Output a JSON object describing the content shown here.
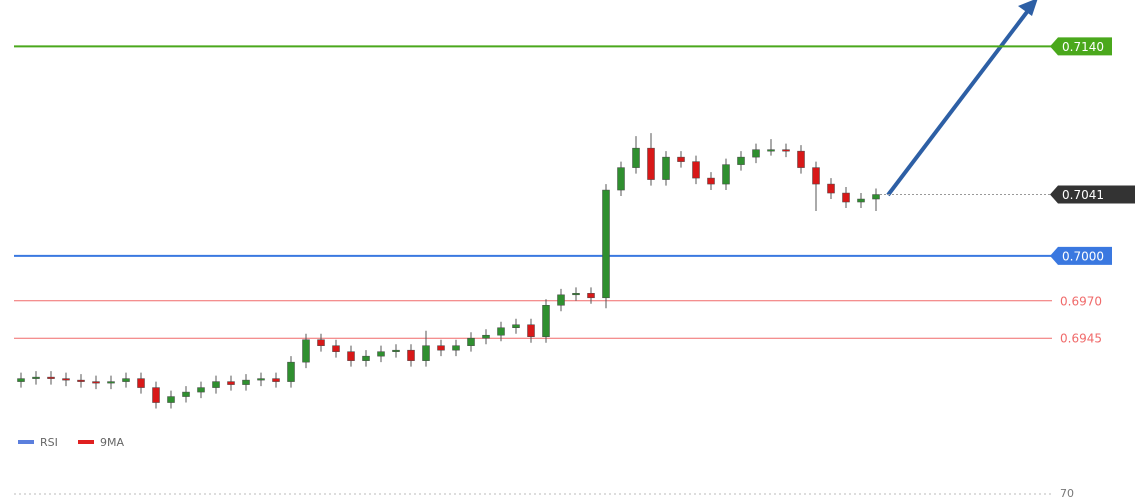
{
  "chart_data": {
    "type": "candlestick",
    "open": [
      0.6916,
      0.6918,
      0.6919,
      0.6918,
      0.6917,
      0.6916,
      0.6915,
      0.6916,
      0.6918,
      0.6912,
      0.6902,
      0.6906,
      0.6909,
      0.6912,
      0.6916,
      0.6914,
      0.6917,
      0.6918,
      0.6916,
      0.6929,
      0.6944,
      0.694,
      0.6936,
      0.693,
      0.6933,
      0.6936,
      0.6937,
      0.693,
      0.694,
      0.6937,
      0.694,
      0.6945,
      0.6947,
      0.6952,
      0.6954,
      0.6946,
      0.6967,
      0.6974,
      0.6975,
      0.6972,
      0.7044,
      0.7059,
      0.7072,
      0.7051,
      0.7066,
      0.7063,
      0.7052,
      0.7048,
      0.7061,
      0.7066,
      0.7071,
      0.7071,
      0.707,
      0.7059,
      0.7048,
      0.7042,
      0.7036,
      0.7038
    ],
    "high": [
      0.6922,
      0.6923,
      0.6923,
      0.6922,
      0.6921,
      0.692,
      0.692,
      0.6922,
      0.6922,
      0.6916,
      0.691,
      0.6913,
      0.6916,
      0.692,
      0.692,
      0.6921,
      0.6922,
      0.6922,
      0.6933,
      0.6948,
      0.6948,
      0.6944,
      0.694,
      0.6937,
      0.694,
      0.6941,
      0.6941,
      0.695,
      0.6944,
      0.6944,
      0.6949,
      0.6951,
      0.6956,
      0.6958,
      0.6958,
      0.6971,
      0.6978,
      0.6979,
      0.6979,
      0.7048,
      0.7063,
      0.708,
      0.7082,
      0.707,
      0.707,
      0.7067,
      0.7056,
      0.7065,
      0.707,
      0.7075,
      0.7078,
      0.7075,
      0.7074,
      0.7063,
      0.7052,
      0.7046,
      0.7042,
      0.7045
    ],
    "low": [
      0.6912,
      0.6914,
      0.6914,
      0.6913,
      0.6912,
      0.6911,
      0.6911,
      0.6912,
      0.6908,
      0.6898,
      0.6898,
      0.6902,
      0.6905,
      0.6908,
      0.691,
      0.691,
      0.6913,
      0.6912,
      0.6912,
      0.6925,
      0.6936,
      0.6932,
      0.6926,
      0.6926,
      0.6929,
      0.6932,
      0.6926,
      0.6926,
      0.6933,
      0.6933,
      0.6936,
      0.6941,
      0.6943,
      0.6948,
      0.6942,
      0.6942,
      0.6963,
      0.697,
      0.6968,
      0.6965,
      0.704,
      0.7055,
      0.7047,
      0.7047,
      0.7059,
      0.7048,
      0.7044,
      0.7044,
      0.7057,
      0.7062,
      0.7067,
      0.7066,
      0.7055,
      0.703,
      0.7038,
      0.7032,
      0.7032,
      0.703
    ],
    "close": [
      0.6918,
      0.6919,
      0.6918,
      0.6917,
      0.6916,
      0.6915,
      0.6916,
      0.6918,
      0.6912,
      0.6902,
      0.6906,
      0.6909,
      0.6912,
      0.6916,
      0.6914,
      0.6917,
      0.6918,
      0.6916,
      0.6929,
      0.6944,
      0.694,
      0.6936,
      0.693,
      0.6933,
      0.6936,
      0.6937,
      0.693,
      0.694,
      0.6937,
      0.694,
      0.6945,
      0.6947,
      0.6952,
      0.6954,
      0.6946,
      0.6967,
      0.6974,
      0.6975,
      0.6972,
      0.7044,
      0.7059,
      0.7072,
      0.7051,
      0.7066,
      0.7063,
      0.7052,
      0.7048,
      0.7061,
      0.7066,
      0.7071,
      0.7071,
      0.707,
      0.7059,
      0.7048,
      0.7042,
      0.7036,
      0.7038,
      0.7041
    ],
    "up_color": "#2f8f2f",
    "down_color": "#d81818",
    "ylim": [
      0.6887,
      0.7171
    ],
    "levels": [
      {
        "value": 0.714,
        "label": "0.7140",
        "color": "#4aa81c",
        "tagged": true
      },
      {
        "value": 0.7,
        "label": "0.7000",
        "color": "#3a78e0",
        "tagged": true
      },
      {
        "value": 0.697,
        "label": "0.6970",
        "color": "#f06a6a",
        "tagged": false
      },
      {
        "value": 0.6945,
        "label": "0.6945",
        "color": "#f06a6a",
        "tagged": false
      }
    ],
    "last": {
      "value": 0.7041,
      "label": "0.7041",
      "color": "#333333"
    },
    "indicator": {
      "series": [
        {
          "name": "RSI",
          "color": "#5b7fdd"
        },
        {
          "name": "9MA",
          "color": "#e02020"
        }
      ],
      "yticks": [
        70
      ]
    }
  }
}
